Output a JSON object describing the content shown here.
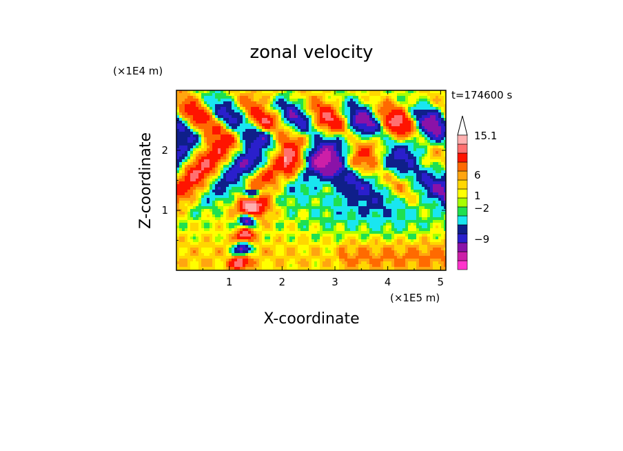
{
  "chart_data": {
    "type": "heatmap",
    "title": "zonal velocity",
    "xlabel": "X-coordinate",
    "ylabel": "Z-coordinate",
    "x_scale_label": "(×1E5 m)",
    "y_scale_label": "(×1E4 m)",
    "time_label": "t=174600 s",
    "xlim": [
      0,
      5.1
    ],
    "ylim": [
      0,
      3.0
    ],
    "x_ticks": [
      "1",
      "2",
      "3",
      "4",
      "5"
    ],
    "y_ticks": [
      "1",
      "2"
    ],
    "colorbar": {
      "bins": [
        {
          "color": "#ff33cc"
        },
        {
          "color": "#cc1fa8"
        },
        {
          "color": "#8a12a8"
        },
        {
          "color": "#2a1fcc"
        },
        {
          "color": "#0f1f8a"
        },
        {
          "color": "#19e6f0"
        },
        {
          "color": "#1fe050"
        },
        {
          "color": "#a8ff00"
        },
        {
          "color": "#ffff00"
        },
        {
          "color": "#ffd700"
        },
        {
          "color": "#ffa510"
        },
        {
          "color": "#ff6a00"
        },
        {
          "color": "#ff1400"
        },
        {
          "color": "#ff7070"
        },
        {
          "color": "#ffb0b0"
        }
      ],
      "labels": [
        "15.1",
        "6",
        "1",
        "−2",
        "−9"
      ],
      "extend": "max"
    }
  }
}
